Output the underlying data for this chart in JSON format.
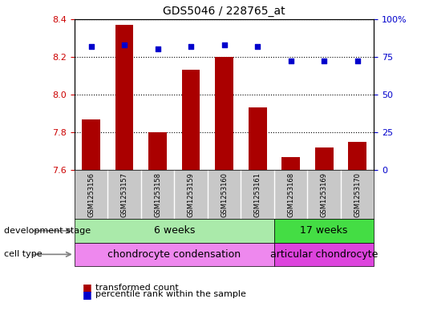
{
  "title": "GDS5046 / 228765_at",
  "samples": [
    "GSM1253156",
    "GSM1253157",
    "GSM1253158",
    "GSM1253159",
    "GSM1253160",
    "GSM1253161",
    "GSM1253168",
    "GSM1253169",
    "GSM1253170"
  ],
  "bar_values": [
    7.87,
    8.37,
    7.8,
    8.13,
    8.2,
    7.93,
    7.67,
    7.72,
    7.75
  ],
  "percentile_values": [
    82,
    83,
    80,
    82,
    83,
    82,
    72,
    72,
    72
  ],
  "ylim_left": [
    7.6,
    8.4
  ],
  "ylim_right": [
    0,
    100
  ],
  "yticks_left": [
    7.6,
    7.8,
    8.0,
    8.2,
    8.4
  ],
  "yticks_right": [
    0,
    25,
    50,
    75,
    100
  ],
  "ytick_labels_right": [
    "0",
    "25",
    "50",
    "75",
    "100%"
  ],
  "bar_color": "#AA0000",
  "dot_color": "#0000CC",
  "grid_color": "#000000",
  "background_color": "#FFFFFF",
  "left_tick_color": "#CC0000",
  "right_tick_color": "#0000CC",
  "xlabel_bg_color": "#C8C8C8",
  "xlabel_divider_color": "#FFFFFF",
  "development_stage_groups": [
    {
      "label": "6 weeks",
      "start": 0,
      "end": 5,
      "color": "#AAEAAA"
    },
    {
      "label": "17 weeks",
      "start": 6,
      "end": 8,
      "color": "#44DD44"
    }
  ],
  "cell_type_groups": [
    {
      "label": "chondrocyte condensation",
      "start": 0,
      "end": 5,
      "color": "#EE88EE"
    },
    {
      "label": "articular chondrocyte",
      "start": 6,
      "end": 8,
      "color": "#DD44DD"
    }
  ],
  "legend_bar_label": "transformed count",
  "legend_dot_label": "percentile rank within the sample",
  "dev_stage_label": "development stage",
  "cell_type_label": "cell type",
  "figsize": [
    5.3,
    3.93
  ],
  "dpi": 100
}
